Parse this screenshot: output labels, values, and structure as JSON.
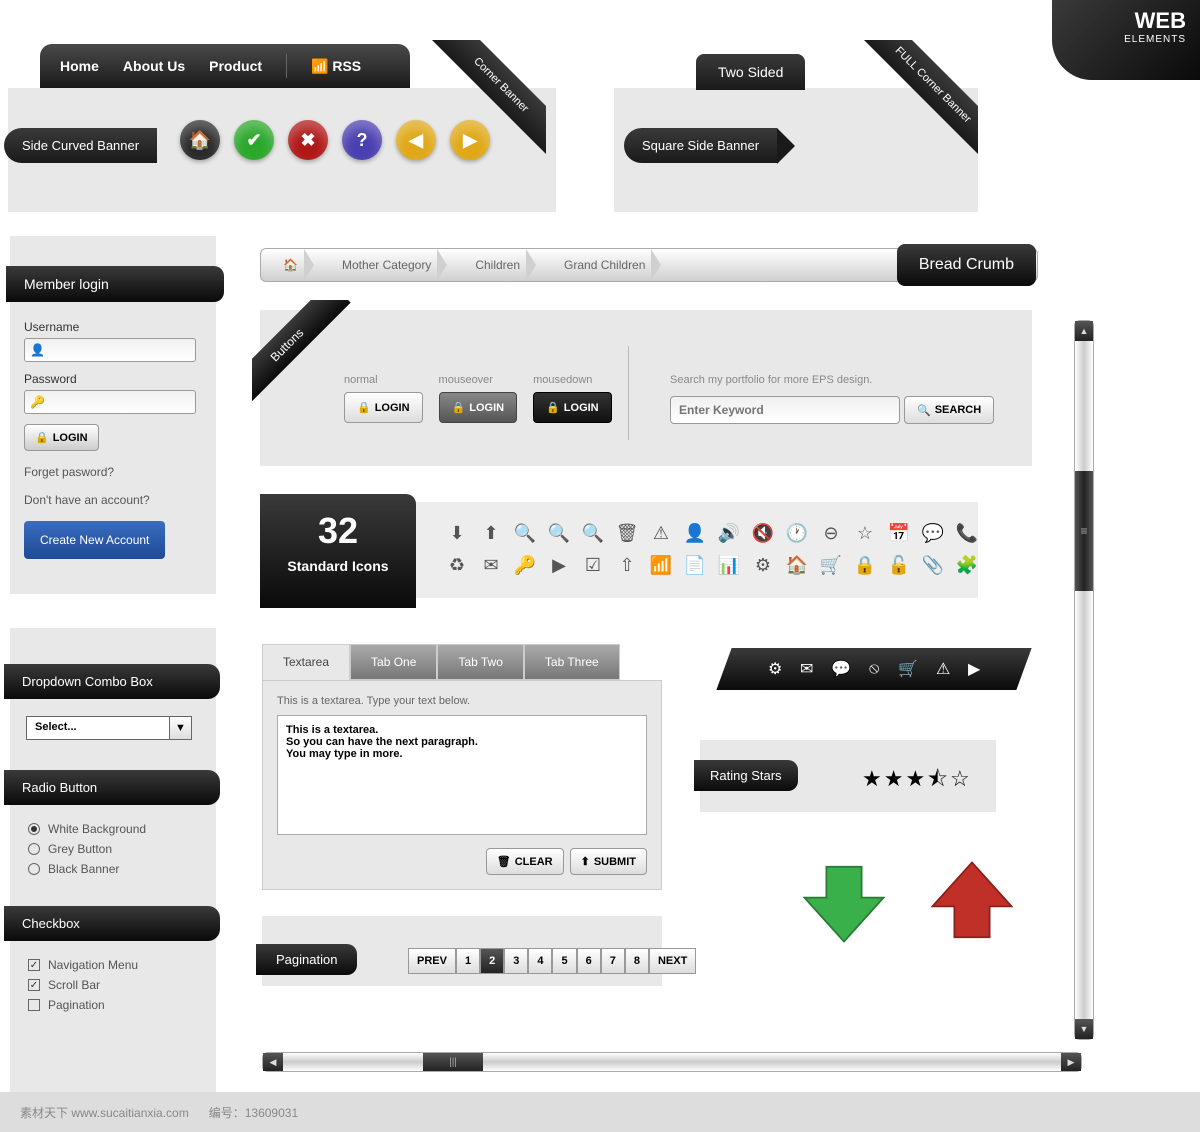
{
  "colors": {
    "panel_bg": "#e8e8e8",
    "dark_grad_top": "#3a3a3a",
    "dark_grad_bottom": "#0a0a0a",
    "blue_btn": "#1f4a96",
    "round_home": "#2a2a2a",
    "round_check": "#2ba82b",
    "round_cross": "#b01818",
    "round_help": "#4a3fb0",
    "round_left": "#e0a818",
    "round_right": "#e0a818",
    "arrow_down": "#3ab04a",
    "arrow_up": "#c03028"
  },
  "nav": {
    "items": [
      "Home",
      "About Us",
      "Product"
    ],
    "rss": "RSS"
  },
  "corner_banner": "Corner Banner",
  "full_corner_banner": [
    "FULL",
    "Corner Banner"
  ],
  "two_sided": "Two Sided",
  "side_curved": "Side Curved Banner",
  "square_side": "Square Side Banner",
  "breadcrumb": {
    "items": [
      "Mother Category",
      "Children",
      "Grand Children"
    ],
    "label": "Bread Crumb"
  },
  "login": {
    "header": "Member login",
    "username_label": "Username",
    "password_label": "Password",
    "login_btn": "LOGIN",
    "forgot": "Forget pasword?",
    "no_account": "Don't have an account?",
    "create": "Create New Account"
  },
  "buttons_panel": {
    "corner": "Buttons",
    "states": [
      {
        "label": "normal",
        "text": "LOGIN"
      },
      {
        "label": "mouseover",
        "text": "LOGIN"
      },
      {
        "label": "mousedown",
        "text": "LOGIN"
      }
    ],
    "search_hint": "Search my portfolio for more EPS design.",
    "search_placeholder": "Enter Keyword",
    "search_btn": "SEARCH"
  },
  "icons_badge": {
    "count": "32",
    "label": "Standard Icons"
  },
  "icon_names": [
    "arrow-down",
    "arrow-up",
    "zoom-in",
    "zoom-out",
    "search",
    "trash",
    "warning",
    "user",
    "sound-on",
    "sound-off",
    "clock",
    "minus",
    "star",
    "calendar",
    "chat",
    "phone",
    "recycle",
    "mail",
    "key",
    "play",
    "checkbox",
    "upload",
    "rss",
    "document",
    "chart",
    "gear",
    "home",
    "cart",
    "lock",
    "unlock",
    "clip",
    "puzzle"
  ],
  "dropdown": {
    "header": "Dropdown Combo Box",
    "placeholder": "Select..."
  },
  "radio": {
    "header": "Radio Button",
    "options": [
      {
        "label": "White Background",
        "checked": true
      },
      {
        "label": "Grey Button",
        "checked": false
      },
      {
        "label": "Black Banner",
        "checked": false
      }
    ]
  },
  "checkbox": {
    "header": "Checkbox",
    "options": [
      {
        "label": "Navigation Menu",
        "checked": true
      },
      {
        "label": "Scroll Bar",
        "checked": true
      },
      {
        "label": "Pagination",
        "checked": false
      }
    ]
  },
  "tabs": {
    "active": "Textarea",
    "others": [
      "Tab One",
      "Tab Two",
      "Tab Three"
    ],
    "hint": "This is a textarea. Type your text below.",
    "content": "This is a textarea.\nSo you can have the next paragraph.\nYou may type in more.",
    "clear": "CLEAR",
    "submit": "SUBMIT"
  },
  "ribbon_icons": [
    "gear",
    "mail",
    "chat",
    "minus",
    "cart",
    "warning",
    "play"
  ],
  "rating": {
    "header": "Rating Stars",
    "value": 3.5,
    "max": 5
  },
  "pagination": {
    "header": "Pagination",
    "prev": "PREV",
    "pages": [
      "1",
      "2",
      "3",
      "4",
      "5",
      "6",
      "7",
      "8"
    ],
    "active": "2",
    "next": "NEXT"
  },
  "web_elements": {
    "big": "WEB",
    "small": "ELEMENTS"
  },
  "footer": {
    "site": "素材天下 www.sucaitianxia.com",
    "id_label": "编号：",
    "id": "13609031"
  }
}
